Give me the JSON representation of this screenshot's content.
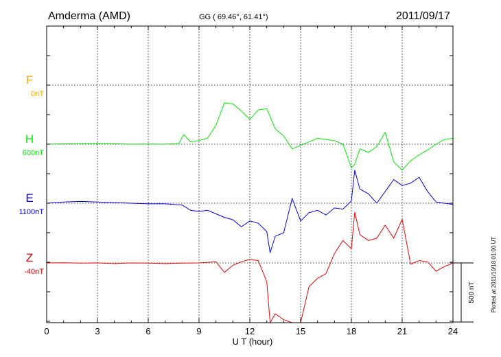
{
  "chart_data": {
    "type": "line",
    "station": "Amderma (AMD)",
    "coords": "GG ( 69.46°,  61.41°)",
    "date": "2011/09/17",
    "xlabel": "U T (hour)",
    "xlim": [
      0,
      24
    ],
    "xticks": [
      "0",
      "3",
      "6",
      "9",
      "12",
      "15",
      "18",
      "21",
      "24"
    ],
    "scale_label": "500 nT",
    "scale_nT": 500,
    "plotted_note": "Plotted at 2011/10/18 01:00 UT",
    "grid": true,
    "series": [
      {
        "name": "F",
        "baseline_label": "0nT",
        "color": "#ffa500",
        "x": [],
        "y": []
      },
      {
        "name": "H",
        "baseline_label": "600nT",
        "color": "#00ee00",
        "x": [
          0,
          1,
          2,
          3,
          4,
          5,
          6,
          7,
          7.8,
          8.1,
          8.5,
          9,
          9.5,
          10,
          10.5,
          11,
          11.5,
          12,
          12.5,
          13,
          13.5,
          14,
          14.5,
          15,
          15.5,
          16,
          16.5,
          17,
          17.5,
          18,
          18.2,
          18.5,
          19,
          19.5,
          20,
          20.5,
          21,
          21.5,
          22,
          22.5,
          23,
          23.5,
          24
        ],
        "y": [
          600,
          603,
          605,
          607,
          604,
          600,
          602,
          600,
          605,
          680,
          620,
          630,
          650,
          760,
          950,
          940,
          880,
          810,
          890,
          900,
          730,
          670,
          560,
          590,
          620,
          650,
          640,
          630,
          600,
          400,
          430,
          560,
          530,
          580,
          700,
          450,
          380,
          460,
          510,
          550,
          600,
          640,
          650
        ]
      },
      {
        "name": "E",
        "baseline_label": "1100nT",
        "color": "#0000ee",
        "x": [
          0,
          1,
          2,
          3,
          4,
          5,
          6,
          7,
          8,
          8.5,
          9,
          9.5,
          10,
          10.5,
          11,
          11.5,
          12,
          12.5,
          13,
          13.2,
          13.5,
          14,
          14.5,
          15,
          15.5,
          16,
          16.5,
          17,
          17.5,
          18,
          18.2,
          18.5,
          19,
          19.5,
          20,
          20.5,
          21,
          21.5,
          22,
          22.5,
          23,
          23.5,
          24
        ],
        "y": [
          1100,
          1110,
          1115,
          1110,
          1105,
          1100,
          1095,
          1095,
          1085,
          1040,
          1030,
          1040,
          1010,
          980,
          960,
          900,
          950,
          930,
          860,
          680,
          820,
          850,
          1140,
          950,
          1020,
          1040,
          1000,
          1060,
          1050,
          1120,
          1380,
          1220,
          1180,
          1100,
          1200,
          1300,
          1250,
          1270,
          1320,
          1200,
          1110,
          1100,
          1090
        ]
      },
      {
        "name": "Z",
        "baseline_label": "-40nT",
        "color": "#ee0000",
        "x": [
          0,
          1,
          2,
          3,
          4,
          5,
          6,
          7,
          8,
          9,
          10,
          10.5,
          11,
          11.5,
          12,
          12.5,
          13,
          13.2,
          13.5,
          14,
          14.5,
          15,
          15.5,
          16,
          16.5,
          17,
          17.5,
          18,
          18.2,
          18.5,
          19,
          19.5,
          20,
          20.5,
          21,
          21.5,
          22,
          22.5,
          23,
          23.5,
          24
        ],
        "y": [
          -40,
          -38,
          -42,
          -40,
          -45,
          -40,
          -42,
          -45,
          -42,
          -40,
          -30,
          -120,
          -60,
          -30,
          -10,
          -20,
          -200,
          -580,
          -470,
          -520,
          -560,
          -590,
          -240,
          -170,
          -130,
          40,
          150,
          80,
          390,
          200,
          150,
          170,
          280,
          170,
          330,
          -50,
          -20,
          -30,
          -110,
          -70,
          -40
        ]
      }
    ]
  }
}
